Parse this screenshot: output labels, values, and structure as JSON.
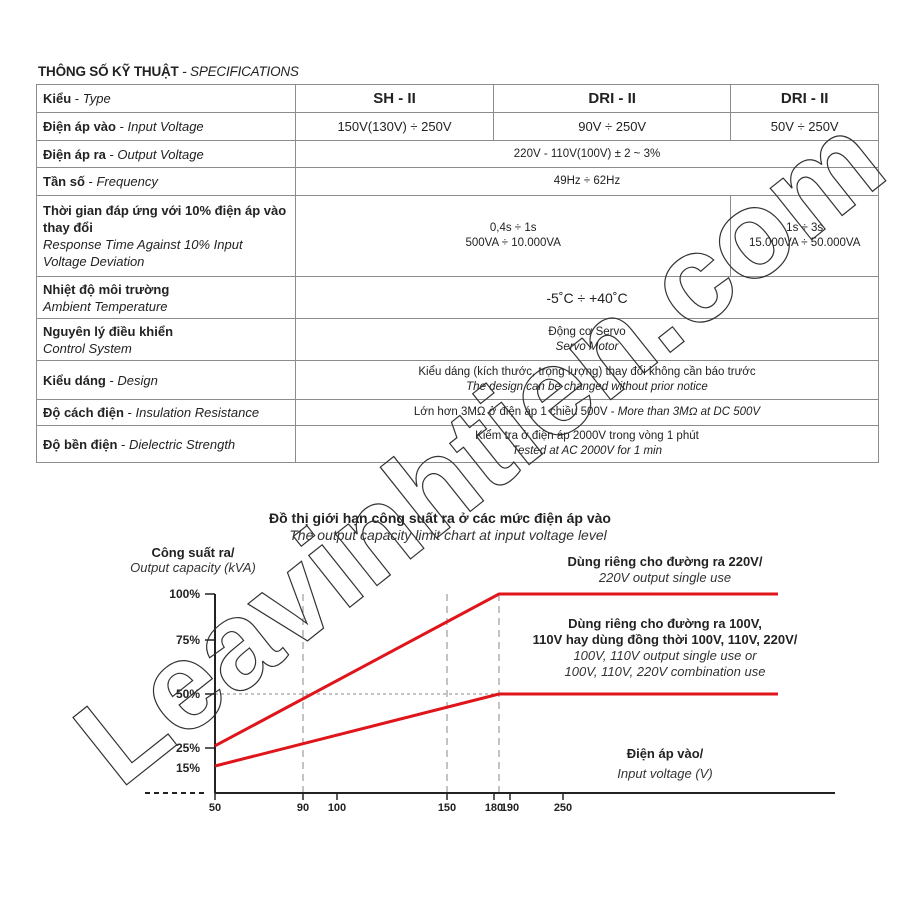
{
  "heading": {
    "vi": "THÔNG SỐ KỸ THUẬT",
    "en": "SPECIFICATIONS",
    "sep": " - "
  },
  "table": {
    "type": {
      "vi": "Kiểu",
      "en": "Type",
      "models": [
        "SH - II",
        "DRI - II",
        "DRI - II"
      ]
    },
    "input_voltage": {
      "vi": "Điện áp vào",
      "en": "Input Voltage",
      "values": [
        "150V(130V) ÷ 250V",
        "90V ÷ 250V",
        "50V ÷ 250V"
      ]
    },
    "output_voltage": {
      "vi": "Điện áp ra",
      "en": "Output Voltage",
      "value": "220V - 110V(100V) ± 2 ~ 3%"
    },
    "frequency": {
      "vi": "Tần số",
      "en": "Frequency",
      "value": "49Hz ÷ 62Hz"
    },
    "response_time": {
      "vi": "Thời gian đáp ứng với 10% điện áp vào thay đổi",
      "en": "Response Time Against 10% Input Voltage Deviation",
      "values": [
        {
          "time": "0,4s ÷ 1s",
          "power": "500VA ÷ 10.000VA"
        },
        {
          "time": "1s ÷ 3s",
          "power": "15.000VA ÷ 50.000VA"
        }
      ]
    },
    "ambient_temperature": {
      "vi": "Nhiệt độ môi trường",
      "en": "Ambient Temperature",
      "value": "-5˚C ÷ +40˚C"
    },
    "control_system": {
      "vi": "Nguyên lý điều khiển",
      "en": "Control System",
      "value_vi": "Động cơ Servo",
      "value_en": "Servo Motor"
    },
    "design": {
      "vi": "Kiểu dáng",
      "en": "Design",
      "value_vi": "Kiểu dáng (kích thước, trọng lượng) thay đổi không cần báo trước",
      "value_en": "The design can be changed without prior notice"
    },
    "insulation": {
      "vi": "Độ cách điện",
      "en": "Insulation Resistance",
      "value_vi": "Lớn hơn 3MΩ ở điện áp 1 chiều 500V",
      "value_en": "More than 3MΩ at DC 500V"
    },
    "dielectric": {
      "vi": "Độ bền điện",
      "en": "Dielectric Strength",
      "value_vi": "Kiểm tra ở điện áp 2000V trong vòng 1 phút",
      "value_en": "Tested at AC 2000V for 1 min"
    }
  },
  "chart_data": {
    "type": "line",
    "title": "Đồ thị giới hạn công suất ra ở các mức điện áp vào",
    "subtitle": "The output capacity limit chart at input voltage level",
    "ylabel": {
      "vi": "Công suất ra/",
      "en": "Output capacity (kVA)"
    },
    "xlabel": {
      "vi": "Điện áp vào/",
      "en": "Input voltage (V)"
    },
    "x_ticks": [
      "50",
      "90",
      "100",
      "150",
      "180",
      "190",
      "250"
    ],
    "y_ticks": [
      "100%",
      "75%",
      "50%",
      "25%",
      "15%"
    ],
    "grid": "dashed verticals at 90, 150, ~185; dotted horizontal at 50%",
    "series": [
      {
        "name": "Dùng riêng cho đường ra 220V/ 220V output single use",
        "points": [
          [
            50,
            26
          ],
          [
            185,
            100
          ],
          [
            300,
            100
          ]
        ],
        "color": "#e0141b"
      },
      {
        "name": "Dùng riêng cho đường ra 100V, 110V hay dùng đồng thời 100V, 110V, 220V/ 100V, 110V output single use or 100V, 110V, 220V combination use",
        "points": [
          [
            50,
            16
          ],
          [
            185,
            50
          ],
          [
            300,
            50
          ]
        ],
        "color": "#e0141b"
      }
    ],
    "annotations": {
      "a1_vi": "Dùng riêng cho đường ra 220V/",
      "a1_en": "220V output single use",
      "a2_vi1": "Dùng riêng cho đường ra 100V,",
      "a2_vi2": "110V hay dùng đồng thời 100V, 110V, 220V/",
      "a2_en1": "100V, 110V output single use or",
      "a2_en2": "100V, 110V, 220V combination use"
    }
  },
  "watermark": "Leavinhtien.com"
}
